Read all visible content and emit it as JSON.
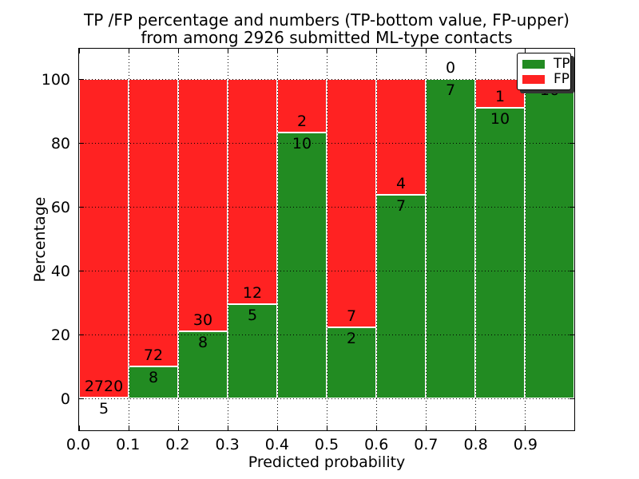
{
  "title": {
    "line1": "TP /FP percentage and numbers (TP-bottom value, FP-upper)",
    "line2": "from among 2926 submitted ML-type contacts"
  },
  "chart_data": {
    "type": "bar",
    "stacked": true,
    "title": "TP /FP percentage and numbers (TP-bottom value, FP-upper) from among 2926 submitted ML-type contacts",
    "xlabel": "Predicted probability",
    "ylabel": "Percentage",
    "total_contacts": 2926,
    "xlim": [
      0.0,
      1.0
    ],
    "ylim": [
      -10,
      110
    ],
    "bin_edges": [
      0.0,
      0.1,
      0.2,
      0.3,
      0.4,
      0.5,
      0.6,
      0.7,
      0.8,
      0.9,
      1.0
    ],
    "x_tick_labels": [
      "0.0",
      "0.1",
      "0.2",
      "0.3",
      "0.4",
      "0.5",
      "0.6",
      "0.7",
      "0.8",
      "0.9"
    ],
    "y_ticks": [
      0,
      20,
      40,
      60,
      80,
      100
    ],
    "y_tick_labels": [
      "0",
      "20",
      "40",
      "60",
      "80",
      "100"
    ],
    "grid": "dotted-on",
    "legend_position": "upper-right",
    "series": [
      {
        "name": "TP",
        "color": "#228b22",
        "counts": [
          5,
          8,
          8,
          5,
          10,
          2,
          7,
          7,
          10,
          16
        ]
      },
      {
        "name": "FP",
        "color": "#ff2222",
        "counts": [
          2720,
          72,
          30,
          12,
          2,
          7,
          4,
          0,
          1,
          0
        ]
      }
    ],
    "tp_percent_per_bin": [
      0.18,
      10.0,
      21.05,
      29.41,
      83.33,
      22.22,
      63.64,
      100.0,
      90.91,
      100.0
    ]
  },
  "legend": {
    "items": [
      {
        "label": "TP",
        "color": "#228b22"
      },
      {
        "label": "FP",
        "color": "#ff2222"
      }
    ]
  },
  "colors": {
    "tp": "#228b22",
    "fp": "#ff2222",
    "bar_edge": "#ffffff",
    "grid": "#000000",
    "background": "#ffffff"
  }
}
